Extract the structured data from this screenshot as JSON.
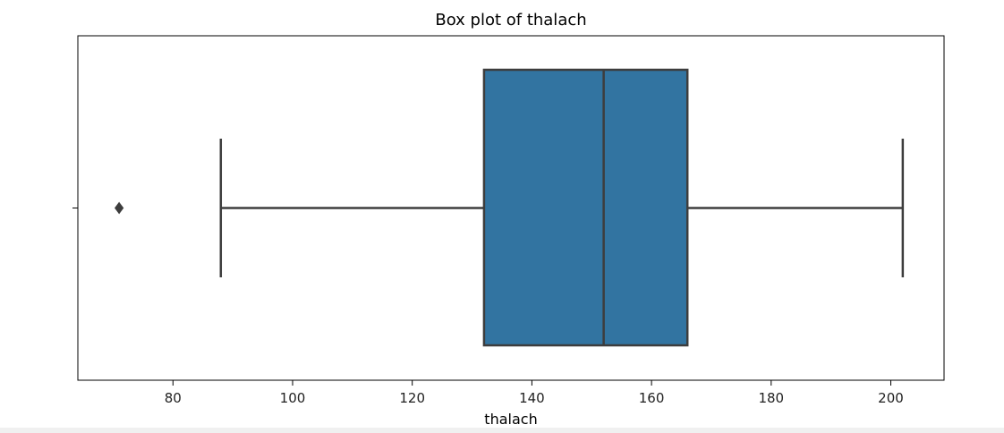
{
  "chart_data": {
    "type": "box",
    "title": "Box plot of thalach",
    "xlabel": "thalach",
    "ylabel": "",
    "xlim": [
      64.1,
      208.9
    ],
    "xticks": [
      80,
      100,
      120,
      140,
      160,
      180,
      200
    ],
    "grid": false,
    "legend": "none",
    "box": {
      "whisker_low": 88,
      "q1": 132,
      "median": 152,
      "q3": 166,
      "whisker_high": 202,
      "outliers": [
        71
      ]
    },
    "colors": {
      "box_fill": "#3274a1",
      "line": "#3d3d3d",
      "frame": "#000000"
    }
  }
}
